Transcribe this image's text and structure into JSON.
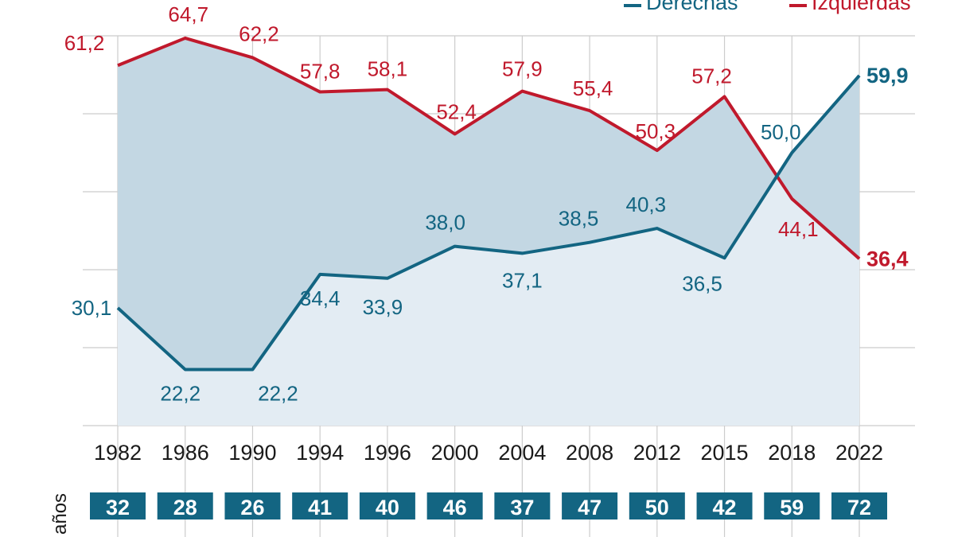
{
  "chart_data": {
    "type": "line",
    "categories": [
      "1982",
      "1986",
      "1990",
      "1994",
      "1996",
      "2000",
      "2004",
      "2008",
      "2012",
      "2015",
      "2018",
      "2022"
    ],
    "series": [
      {
        "name": "Derechas",
        "color": "#136582",
        "values": [
          30.1,
          22.2,
          22.2,
          34.4,
          33.9,
          38.0,
          37.1,
          38.5,
          40.3,
          36.5,
          50.0,
          59.9
        ],
        "labels": [
          "30,1",
          "22,2",
          "22,2",
          "34,4",
          "33,9",
          "38,0",
          "37,1",
          "38,5",
          "40,3",
          "36,5",
          "50,0",
          "59,9"
        ]
      },
      {
        "name": "Izquierdas",
        "color": "#c0192c",
        "values": [
          61.2,
          64.7,
          62.2,
          57.8,
          58.1,
          52.4,
          57.9,
          55.4,
          50.3,
          57.2,
          44.1,
          36.4
        ],
        "labels": [
          "61,2",
          "64,7",
          "62,2",
          "57,8",
          "58,1",
          "52,4",
          "57,9",
          "55,4",
          "50,3",
          "57,2",
          "44,1",
          "36,4"
        ]
      }
    ],
    "ylim": [
      15,
      65
    ],
    "grid": true,
    "legend_position": "top-right",
    "colors": {
      "area_between": "#c3d7e3",
      "area_below": "#e3ecf3",
      "grid": "#cccccc",
      "age_box": "#136582"
    }
  },
  "ages": {
    "label": "años",
    "values": [
      "32",
      "28",
      "26",
      "41",
      "40",
      "46",
      "37",
      "47",
      "50",
      "42",
      "59",
      "72"
    ]
  }
}
